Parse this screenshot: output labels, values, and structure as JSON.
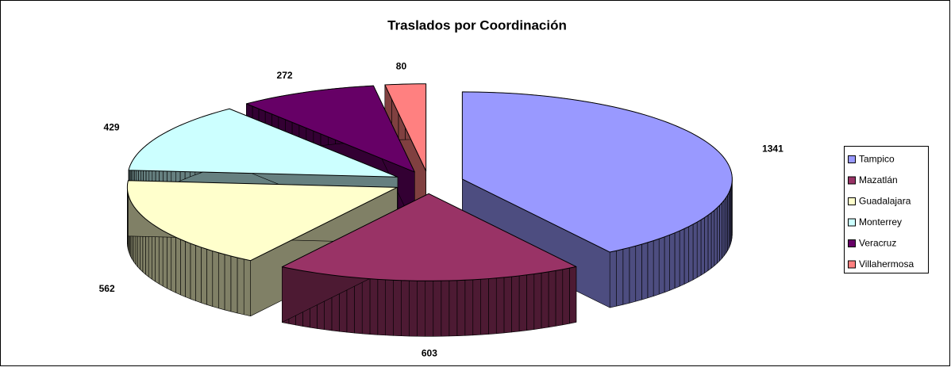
{
  "chart_data": {
    "type": "pie",
    "title": "Traslados por Coordinación",
    "categories": [
      "Tampico",
      "Mazatlán",
      "Guadalajara",
      "Monterrey",
      "Veracruz",
      "Villahermosa"
    ],
    "values": [
      1341,
      603,
      562,
      429,
      272,
      80
    ],
    "colors": [
      "#9999ff",
      "#993366",
      "#ffffcc",
      "#ccffff",
      "#660066",
      "#ff8080"
    ],
    "legend": "right"
  }
}
